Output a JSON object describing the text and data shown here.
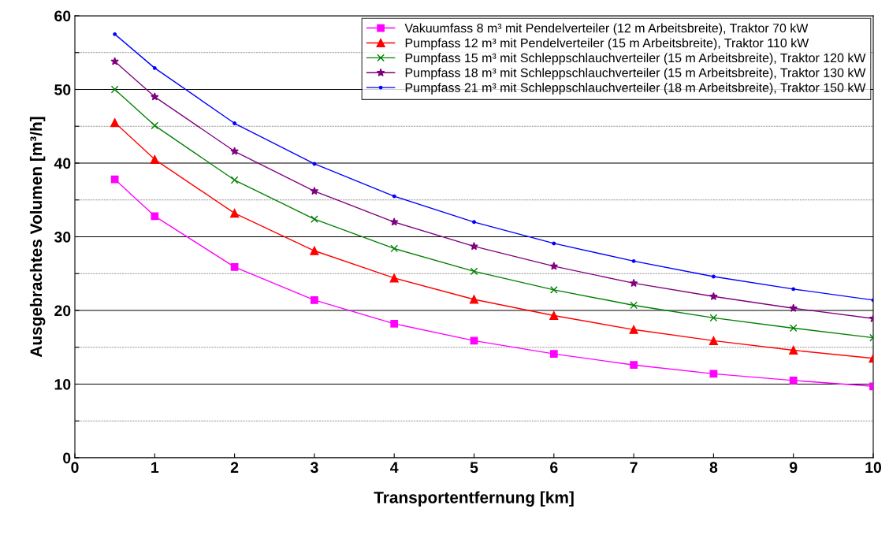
{
  "chart_data": {
    "type": "line",
    "xlabel": "Transportentfernung [km]",
    "ylabel": "Ausgebrachtes Volumen [m³/h]",
    "x": [
      0.5,
      1,
      2,
      3,
      4,
      5,
      6,
      7,
      8,
      9,
      10
    ],
    "xlim": [
      0,
      10
    ],
    "xticks": [
      0,
      1,
      2,
      3,
      4,
      5,
      6,
      7,
      8,
      9,
      10
    ],
    "ylim": [
      0,
      60
    ],
    "yticks": [
      0,
      {
        "value": 5,
        "label": null
      },
      10,
      {
        "value": 15,
        "label": null
      },
      20,
      {
        "value": 25,
        "label": null
      },
      30,
      {
        "value": 35,
        "label": null
      },
      40,
      {
        "value": 45,
        "label": null
      },
      50,
      {
        "value": 55,
        "label": null
      },
      60
    ],
    "grid": "y",
    "legend": "top right",
    "series": [
      {
        "name": "Vakuumfass 8 m³ mit Pendelverteiler (12 m Arbeitsbreite), Traktor 70 kW",
        "color": "#ff00ff",
        "marker": "square",
        "values": [
          37.8,
          32.8,
          25.9,
          21.4,
          18.2,
          15.9,
          14.1,
          12.6,
          11.4,
          10.5,
          9.7
        ]
      },
      {
        "name": "Pumpfass 12 m³ mit Pendelverteiler (15 m Arbeitsbreite), Traktor 110 kW",
        "color": "#ff0000",
        "marker": "triangle",
        "values": [
          45.5,
          40.5,
          33.2,
          28.1,
          24.4,
          21.5,
          19.3,
          17.4,
          15.9,
          14.6,
          13.5
        ]
      },
      {
        "name": "Pumpfass 15 m³ mit Schleppschlauchverteiler (15 m Arbeitsbreite), Traktor 120 kW",
        "color": "#008000",
        "marker": "cross",
        "values": [
          50.0,
          45.1,
          37.7,
          32.4,
          28.4,
          25.3,
          22.8,
          20.7,
          19.0,
          17.6,
          16.3
        ]
      },
      {
        "name": "Pumpfass 18 m³ mit Schleppschlauchverteiler (15 m Arbeitsbreite), Traktor 130 kW",
        "color": "#800080",
        "marker": "star",
        "values": [
          53.8,
          49.0,
          41.6,
          36.2,
          32.0,
          28.7,
          26.0,
          23.7,
          21.9,
          20.3,
          18.9
        ]
      },
      {
        "name": "Pumpfass 21 m³ mit Schleppschlauchverteiler (18 m Arbeitsbreite), Traktor 150 kW",
        "color": "#0000ff",
        "marker": "circle",
        "values": [
          57.5,
          52.9,
          45.4,
          39.9,
          35.5,
          32.0,
          29.1,
          26.7,
          24.6,
          22.9,
          21.4
        ]
      }
    ]
  }
}
